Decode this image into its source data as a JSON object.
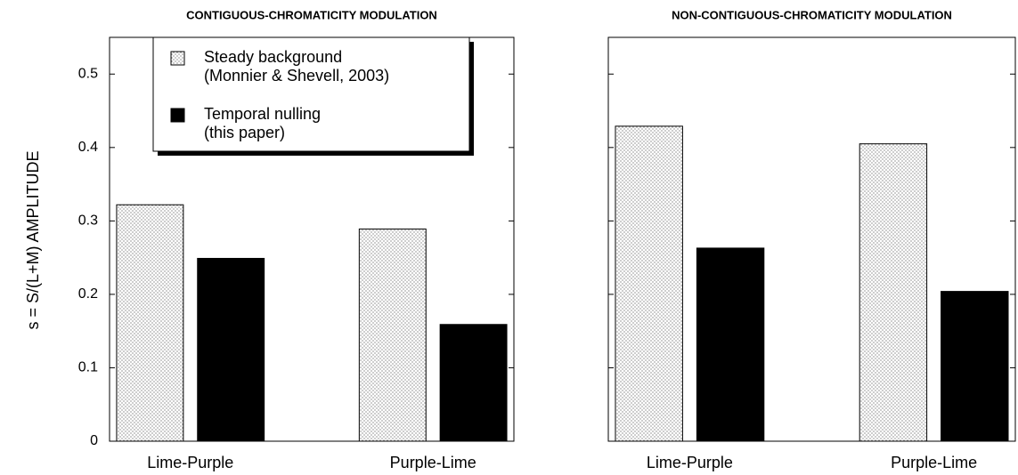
{
  "chart_data": [
    {
      "type": "bar",
      "title": "CONTIGUOUS-CHROMATICITY MODULATION",
      "ylabel": "s = S/(L+M) AMPLITUDE",
      "categories": [
        "Lime-Purple",
        "Purple-Lime"
      ],
      "series": [
        {
          "name": "Steady background\n(Monnier & Shevell, 2003)",
          "color": "#ffffff",
          "pattern": "dots",
          "values": [
            0.322,
            0.289
          ]
        },
        {
          "name": "Temporal nulling\n(this paper)",
          "color": "#000000",
          "values": [
            0.249,
            0.159
          ]
        }
      ],
      "ylim": [
        0,
        0.55
      ],
      "yticks": [
        0,
        0.1,
        0.2,
        0.3,
        0.4,
        0.5
      ],
      "tick_labels": true,
      "legend": "top"
    },
    {
      "type": "bar",
      "title": "NON-CONTIGUOUS-CHROMATICITY MODULATION",
      "categories": [
        "Lime-Purple",
        "Purple-Lime"
      ],
      "series": [
        {
          "color": "#ffffff",
          "pattern": "dots",
          "values": [
            0.429,
            0.405
          ]
        },
        {
          "color": "#000000",
          "values": [
            0.263,
            0.204
          ]
        }
      ],
      "ylim": [
        0,
        0.55
      ],
      "yticks": [
        0,
        0.1,
        0.2,
        0.3,
        0.4,
        0.5
      ],
      "tick_labels": false
    }
  ]
}
